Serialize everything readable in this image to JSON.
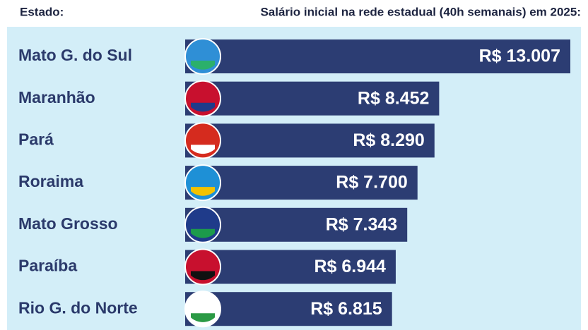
{
  "chart_data": {
    "type": "bar",
    "orientation": "horizontal",
    "category_header": "Estado:",
    "title": "Salário inicial na rede estadual (40h semanais) em 2025:",
    "categories": [
      "Mato G. do Sul",
      "Maranhão",
      "Pará",
      "Roraima",
      "Mato Grosso",
      "Paraíba",
      "Rio G. do Norte"
    ],
    "values": [
      13007,
      8452,
      8290,
      7700,
      7343,
      6944,
      6815
    ],
    "value_labels": [
      "R$ 13.007",
      "R$ 8.452",
      "R$ 8.290",
      "R$ 7.700",
      "R$ 7.343",
      "R$ 6.944",
      "R$ 6.815"
    ],
    "color": "#2c3d73"
  }
}
